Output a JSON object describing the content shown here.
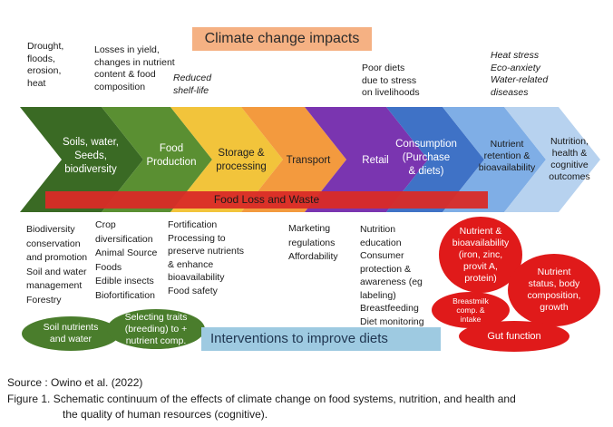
{
  "header": {
    "title": "Climate change impacts",
    "top_notes": [
      "Drought,\nfloods,\nerosion,\nheat",
      "Losses in yield,\nchanges in nutrient\ncontent & food\ncomposition",
      "Reduced\nshelf-life",
      "Poor diets\ndue to stress\non livelihoods",
      "Heat stress\nEco-anxiety\nWater-related\ndiseases"
    ]
  },
  "stages": [
    {
      "label": "Soils, water,\nSeeds,\nbiodiversity",
      "color": "#3a6a24"
    },
    {
      "label": "Food\nProduction",
      "color": "#5a8f32"
    },
    {
      "label": "Storage &\nprocessing",
      "color": "#f2c43b"
    },
    {
      "label": "Transport",
      "color": "#f39a3e"
    },
    {
      "label": "Retail",
      "color": "#7a35b0"
    },
    {
      "label": "Consumption\n(Purchase\n& diets)",
      "color": "#3f72c6"
    },
    {
      "label": "Nutrient\nretention &\nbioavailability",
      "color": "#7faee6"
    },
    {
      "label": "Nutrition,\nhealth &\ncognitive\noutcomes",
      "color": "#b7d2ef"
    }
  ],
  "waste_bar": {
    "label": "Food Loss and Waste",
    "color": "#d92b27"
  },
  "interventions": [
    "Biodiversity\nconservation\nand promotion\nSoil and water\nmanagement\nForestry",
    "Crop\ndiversification\nAnimal Source\nFoods\nEdible insects\nBiofortification",
    "Fortification\nProcessing to\npreserve nutrients\n& enhance\nbioavailability\nFood safety",
    "Marketing\nregulations\nAffordability",
    "Nutrition\neducation\nConsumer\nprotection &\nawareness (eg\nlabeling)\nBreastfeeding\nDiet monitoring"
  ],
  "green_ellipses": [
    "Soil nutrients\nand water",
    "Selecting traits\n(breeding) to +\nnutrient comp."
  ],
  "red_ellipses": [
    "Nutrient &\nbioavailability\n(iron, zinc,\nprovit A,\nprotein)",
    "Nutrient\nstatus, body\ncomposition,\ngrowth",
    "Breastmilk\ncomp. &\nintake",
    "Gut function"
  ],
  "interventions_title": "Interventions to improve diets",
  "source": "Source : Owino et al. (2022)",
  "caption_line1": "Figure 1. Schematic continuum of the effects of climate change on food systems, nutrition, and health and",
  "caption_line2": "the quality of human resources (cognitive).",
  "colors": {
    "green_ellipse": "#4a7d2c",
    "red_ellipse": "#e01a1a",
    "interventions_box": "#9ecae1",
    "title_box": "#f5b183"
  }
}
